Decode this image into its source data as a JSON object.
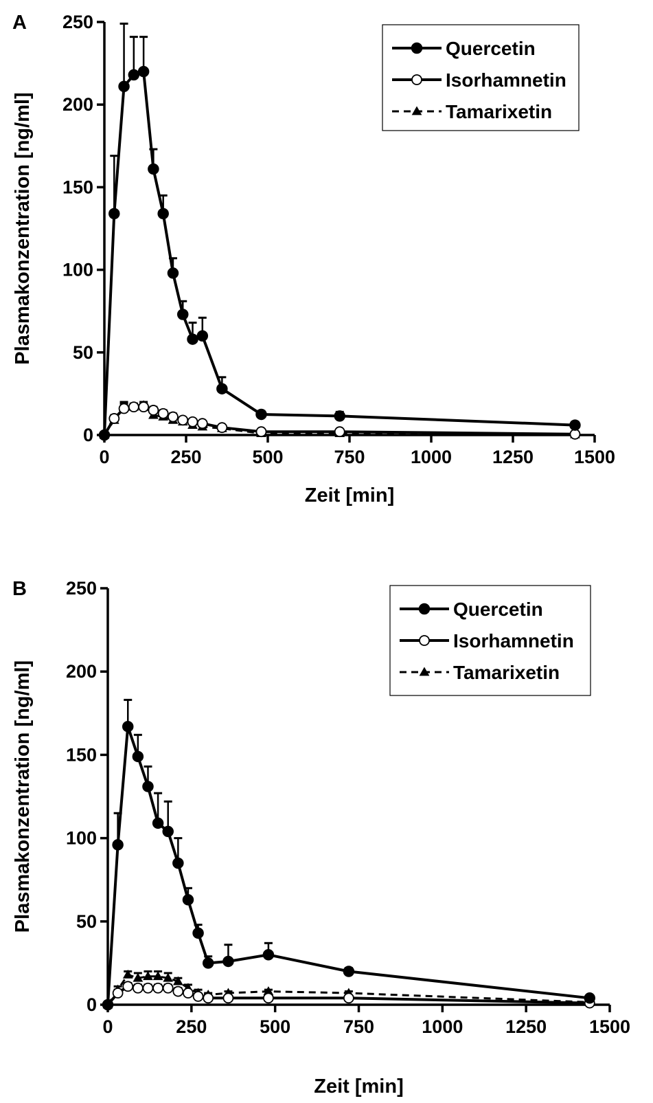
{
  "colors": {
    "ink": "#000000",
    "background": "#ffffff",
    "open_marker_fill": "#ffffff"
  },
  "chart_data": [
    {
      "type": "line",
      "panel_label": "A",
      "xlabel": "Zeit [min]",
      "ylabel": "Plasmakonzentration [ng/ml]",
      "xlim": [
        0,
        1500
      ],
      "ylim": [
        0,
        250
      ],
      "xticks": [
        0,
        250,
        500,
        750,
        1000,
        1250,
        1500
      ],
      "yticks": [
        0,
        50,
        100,
        150,
        200,
        250
      ],
      "grid": false,
      "legend_position": "top-right",
      "series": [
        {
          "name": "Quercetin",
          "marker": "filled-circle",
          "line": "solid",
          "x": [
            0,
            30,
            60,
            90,
            120,
            150,
            180,
            210,
            240,
            270,
            300,
            360,
            480,
            720,
            1440
          ],
          "y": [
            0,
            134,
            211,
            218,
            220,
            161,
            134,
            98,
            73,
            58,
            60,
            28,
            12.5,
            11.5,
            6
          ],
          "err": [
            0,
            35,
            38,
            23,
            21,
            12,
            11,
            9,
            8,
            10,
            11,
            7,
            2,
            2.5,
            2
          ]
        },
        {
          "name": "Isorhamnetin",
          "marker": "open-circle",
          "line": "solid",
          "x": [
            0,
            30,
            60,
            90,
            120,
            150,
            180,
            210,
            240,
            270,
            300,
            360,
            480,
            720,
            1440
          ],
          "y": [
            0,
            10,
            16,
            17,
            17,
            15,
            13,
            11,
            9,
            8,
            7,
            4.5,
            2,
            2,
            0.5
          ],
          "err": [
            0,
            2,
            3,
            2,
            2,
            2,
            2,
            2,
            1,
            1,
            1,
            1,
            0.5,
            0.5,
            0
          ]
        },
        {
          "name": "Tamarixetin",
          "marker": "filled-triangle",
          "line": "dashed",
          "x": [
            0,
            30,
            60,
            90,
            120,
            150,
            180,
            210,
            240,
            270,
            300,
            360,
            480,
            720,
            1440
          ],
          "y": [
            0,
            9,
            17,
            17,
            18,
            12,
            11,
            9,
            8,
            6,
            5,
            4,
            1,
            1,
            0.3
          ],
          "err": [
            0,
            2,
            3,
            2,
            2,
            2,
            2,
            1,
            1,
            1,
            1,
            1,
            0.5,
            0.5,
            0
          ]
        }
      ]
    },
    {
      "type": "line",
      "panel_label": "B",
      "xlabel": "Zeit [min]",
      "ylabel": "Plasmakonzentration [ng/ml]",
      "xlim": [
        0,
        1500
      ],
      "ylim": [
        0,
        250
      ],
      "xticks": [
        0,
        250,
        500,
        750,
        1000,
        1250,
        1500
      ],
      "yticks": [
        0,
        50,
        100,
        150,
        200,
        250
      ],
      "grid": false,
      "legend_position": "top-right",
      "series": [
        {
          "name": "Quercetin",
          "marker": "filled-circle",
          "line": "solid",
          "x": [
            0,
            30,
            60,
            90,
            120,
            150,
            180,
            210,
            240,
            270,
            300,
            360,
            480,
            720,
            1440
          ],
          "y": [
            0,
            96,
            167,
            149,
            131,
            109,
            104,
            85,
            63,
            43,
            25,
            26,
            30,
            20,
            4
          ],
          "err": [
            0,
            19,
            16,
            13,
            12,
            18,
            18,
            15,
            7,
            5,
            4,
            10,
            7,
            2,
            1
          ]
        },
        {
          "name": "Isorhamnetin",
          "marker": "open-circle",
          "line": "solid",
          "x": [
            0,
            30,
            60,
            90,
            120,
            150,
            180,
            210,
            240,
            270,
            300,
            360,
            480,
            720,
            1440
          ],
          "y": [
            0,
            7,
            11,
            10,
            10,
            10,
            10,
            8,
            7,
            5,
            4,
            4,
            4,
            4,
            1
          ],
          "err": [
            0,
            2,
            2,
            2,
            2,
            2,
            2,
            2,
            1,
            1,
            1,
            1,
            1,
            1,
            0
          ]
        },
        {
          "name": "Tamarixetin",
          "marker": "filled-triangle",
          "line": "dashed",
          "x": [
            0,
            30,
            60,
            90,
            120,
            150,
            180,
            210,
            240,
            270,
            300,
            360,
            480,
            720,
            1440
          ],
          "y": [
            0,
            9,
            18,
            16,
            17,
            17,
            16,
            14,
            10,
            7,
            6,
            7,
            8,
            7,
            1.5
          ],
          "err": [
            0,
            2,
            2,
            3,
            3,
            3,
            3,
            2,
            2,
            2,
            1,
            1,
            1,
            1,
            0
          ]
        }
      ]
    }
  ]
}
